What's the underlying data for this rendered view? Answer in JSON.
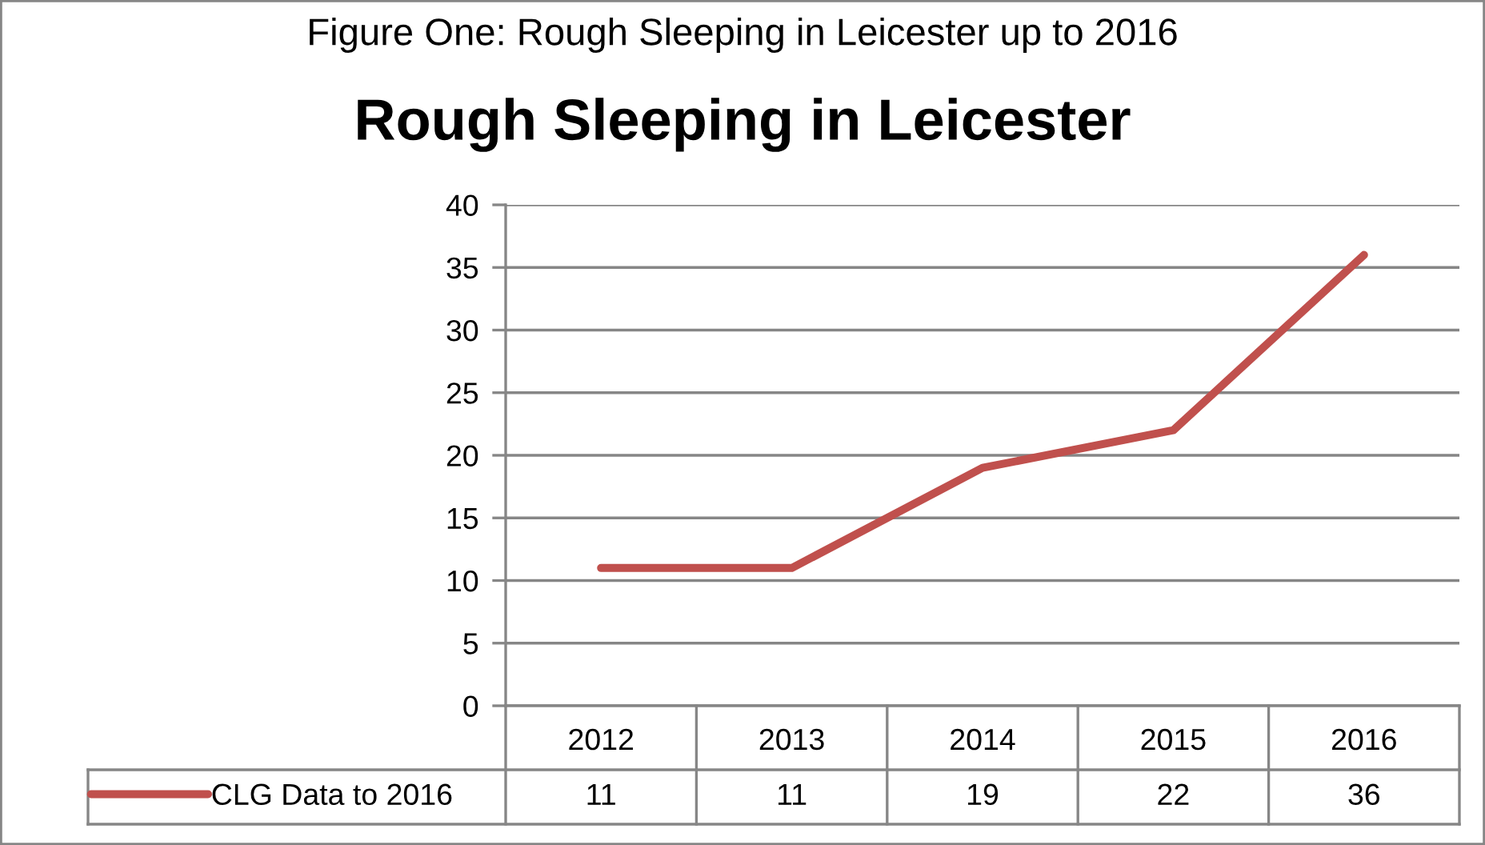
{
  "chart_data": {
    "type": "line",
    "title": "Rough Sleeping in Leicester",
    "annotations": [
      "Figure One: Rough Sleeping in Leicester up to 2016"
    ],
    "categories": [
      "2012",
      "2013",
      "2014",
      "2015",
      "2016"
    ],
    "series": [
      {
        "name": "CLG Data to 2016",
        "color": "#c0504d",
        "values": [
          11,
          11,
          19,
          22,
          36
        ]
      }
    ],
    "ylim": [
      0,
      40
    ],
    "yticks": [
      0,
      5,
      10,
      15,
      20,
      25,
      30,
      35,
      40
    ],
    "grid": "y",
    "legend": "bottom left",
    "marker": "none",
    "line_style": "solid",
    "data_labels": true
  }
}
